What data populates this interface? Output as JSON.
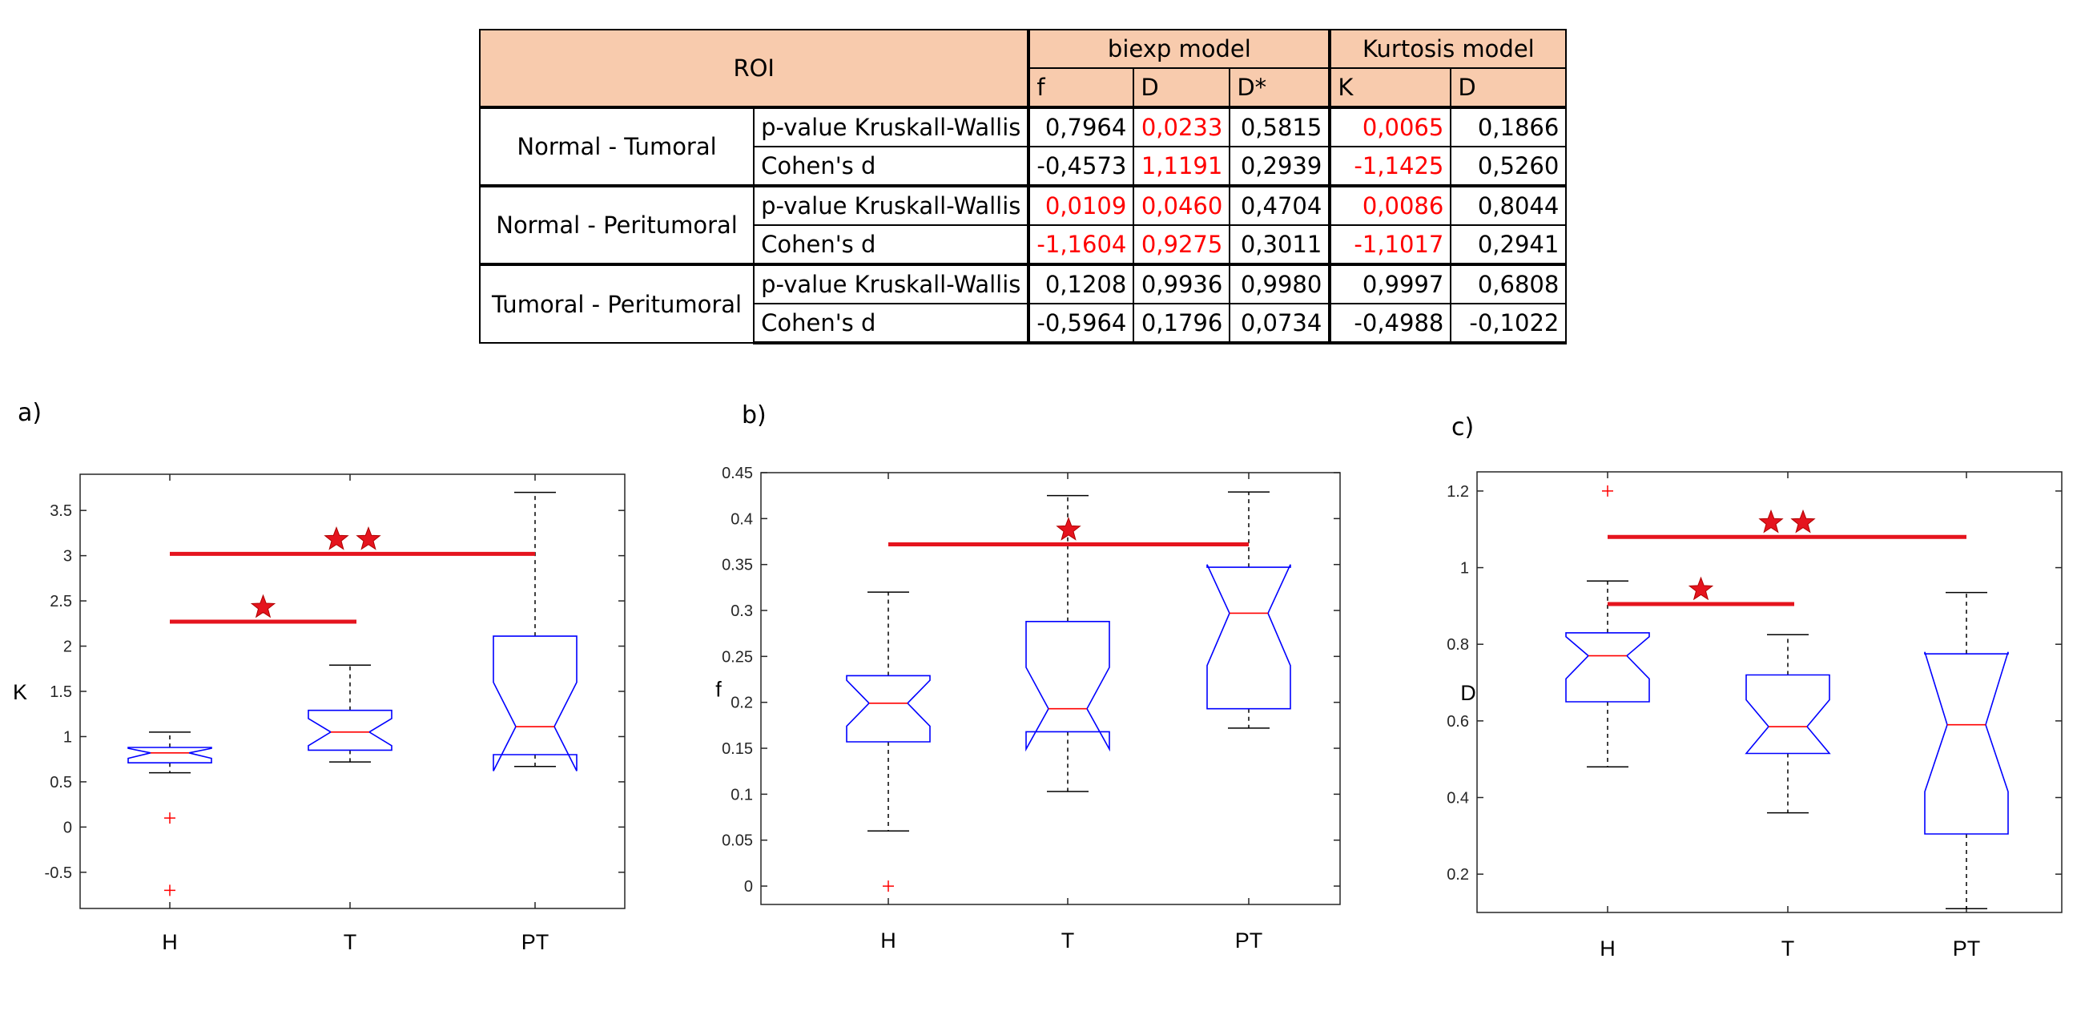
{
  "table": {
    "roi_header": "ROI",
    "model_headers": [
      "biexp model",
      "Kurtosis model"
    ],
    "sub_headers": [
      "f",
      "D",
      "D*",
      "K",
      "D"
    ],
    "groups": [
      {
        "name": "Normal - Tumoral",
        "rows": [
          {
            "metric": "p-value Kruskall-Wallis",
            "values": [
              "0,7964",
              "0,0233",
              "0,5815",
              "0,0065",
              "0,1866"
            ],
            "significant": [
              false,
              true,
              false,
              true,
              false
            ]
          },
          {
            "metric": "Cohen's d",
            "values": [
              "-0,4573",
              "1,1191",
              "0,2939",
              "-1,1425",
              "0,5260"
            ],
            "significant": [
              false,
              true,
              false,
              true,
              false
            ]
          }
        ]
      },
      {
        "name": "Normal - Peritumoral",
        "rows": [
          {
            "metric": "p-value Kruskall-Wallis",
            "values": [
              "0,0109",
              "0,0460",
              "0,4704",
              "0,0086",
              "0,8044"
            ],
            "significant": [
              true,
              true,
              false,
              true,
              false
            ]
          },
          {
            "metric": "Cohen's d",
            "values": [
              "-1,1604",
              "0,9275",
              "0,3011",
              "-1,1017",
              "0,2941"
            ],
            "significant": [
              true,
              true,
              false,
              true,
              false
            ]
          }
        ]
      },
      {
        "name": "Tumoral - Peritumoral",
        "rows": [
          {
            "metric": "p-value Kruskall-Wallis",
            "values": [
              "0,1208",
              "0,9936",
              "0,9980",
              "0,9997",
              "0,6808"
            ],
            "significant": [
              false,
              false,
              false,
              false,
              false
            ]
          },
          {
            "metric": "Cohen's d",
            "values": [
              "-0,5964",
              "0,1796",
              "0,0734",
              "-0,4988",
              "-0,1022"
            ],
            "significant": [
              false,
              false,
              false,
              false,
              false
            ]
          }
        ]
      }
    ],
    "highlight_color": "#ff0000",
    "header_bg": "#f8cbad"
  },
  "panels": [
    "a)",
    "b)",
    "c)"
  ],
  "chart_data": [
    {
      "type": "box",
      "panel": "a)",
      "ylabel": "K",
      "categories": [
        "H",
        "T",
        "PT"
      ],
      "ylim": [
        -0.9,
        3.9
      ],
      "yticks": [
        -0.5,
        0,
        0.5,
        1,
        1.5,
        2,
        2.5,
        3,
        3.5
      ],
      "ytick_labels": [
        "-0.5",
        "0",
        "0.5",
        "1",
        "1.5",
        "2",
        "2.5",
        "3",
        "3.5"
      ],
      "boxes": [
        {
          "category": "H",
          "whisker_low": 0.6,
          "q1": 0.71,
          "median": 0.82,
          "q3": 0.88,
          "whisker_high": 1.05,
          "notch_low": 0.76,
          "notch_high": 0.87,
          "outliers": [
            0.1,
            -0.7
          ]
        },
        {
          "category": "T",
          "whisker_low": 0.72,
          "q1": 0.85,
          "median": 1.05,
          "q3": 1.29,
          "whisker_high": 1.79,
          "notch_low": 0.9,
          "notch_high": 1.2,
          "outliers": []
        },
        {
          "category": "PT",
          "whisker_low": 0.67,
          "q1": 0.8,
          "median": 1.11,
          "q3": 2.11,
          "whisker_high": 3.7,
          "notch_low": 0.62,
          "notch_high": 1.6,
          "outliers": []
        }
      ],
      "significance": [
        {
          "from": "H",
          "to": "T",
          "y": 2.27,
          "stars": 1
        },
        {
          "from": "H",
          "to": "PT",
          "y": 3.02,
          "stars": 2
        }
      ]
    },
    {
      "type": "box",
      "panel": "b)",
      "ylabel": "f",
      "categories": [
        "H",
        "T",
        "PT"
      ],
      "ylim": [
        -0.02,
        0.45
      ],
      "yticks": [
        0,
        0.05,
        0.1,
        0.15,
        0.2,
        0.25,
        0.3,
        0.35,
        0.4,
        0.45
      ],
      "ytick_labels": [
        "0",
        "0.05",
        "0.1",
        "0.15",
        "0.2",
        "0.25",
        "0.3",
        "0.35",
        "0.4",
        "0.45"
      ],
      "boxes": [
        {
          "category": "H",
          "whisker_low": 0.06,
          "q1": 0.157,
          "median": 0.199,
          "q3": 0.229,
          "whisker_high": 0.32,
          "notch_low": 0.174,
          "notch_high": 0.224,
          "outliers": [
            0.0
          ]
        },
        {
          "category": "T",
          "whisker_low": 0.103,
          "q1": 0.168,
          "median": 0.193,
          "q3": 0.288,
          "whisker_high": 0.425,
          "notch_low": 0.149,
          "notch_high": 0.238,
          "outliers": []
        },
        {
          "category": "PT",
          "whisker_low": 0.172,
          "q1": 0.193,
          "median": 0.297,
          "q3": 0.347,
          "whisker_high": 0.429,
          "notch_low": 0.24,
          "notch_high": 0.35,
          "outliers": []
        }
      ],
      "significance": [
        {
          "from": "H",
          "to": "PT",
          "y": 0.372,
          "stars": 1
        }
      ]
    },
    {
      "type": "box",
      "panel": "c)",
      "ylabel": "D",
      "categories": [
        "H",
        "T",
        "PT"
      ],
      "ylim": [
        0.1,
        1.25
      ],
      "yticks": [
        0.2,
        0.4,
        0.6,
        0.8,
        1,
        1.2
      ],
      "ytick_labels": [
        "0.2",
        "0.4",
        "0.6",
        "0.8",
        "1",
        "1.2"
      ],
      "boxes": [
        {
          "category": "H",
          "whisker_low": 0.48,
          "q1": 0.65,
          "median": 0.77,
          "q3": 0.83,
          "whisker_high": 0.965,
          "notch_low": 0.71,
          "notch_high": 0.82,
          "outliers": [
            1.2
          ]
        },
        {
          "category": "T",
          "whisker_low": 0.36,
          "q1": 0.515,
          "median": 0.585,
          "q3": 0.72,
          "whisker_high": 0.825,
          "notch_low": 0.515,
          "notch_high": 0.655,
          "outliers": []
        },
        {
          "category": "PT",
          "whisker_low": 0.11,
          "q1": 0.305,
          "median": 0.59,
          "q3": 0.775,
          "whisker_high": 0.935,
          "notch_low": 0.415,
          "notch_high": 0.78,
          "outliers": []
        }
      ],
      "significance": [
        {
          "from": "H",
          "to": "T",
          "y": 0.905,
          "stars": 1
        },
        {
          "from": "H",
          "to": "PT",
          "y": 1.08,
          "stars": 2
        }
      ]
    }
  ]
}
